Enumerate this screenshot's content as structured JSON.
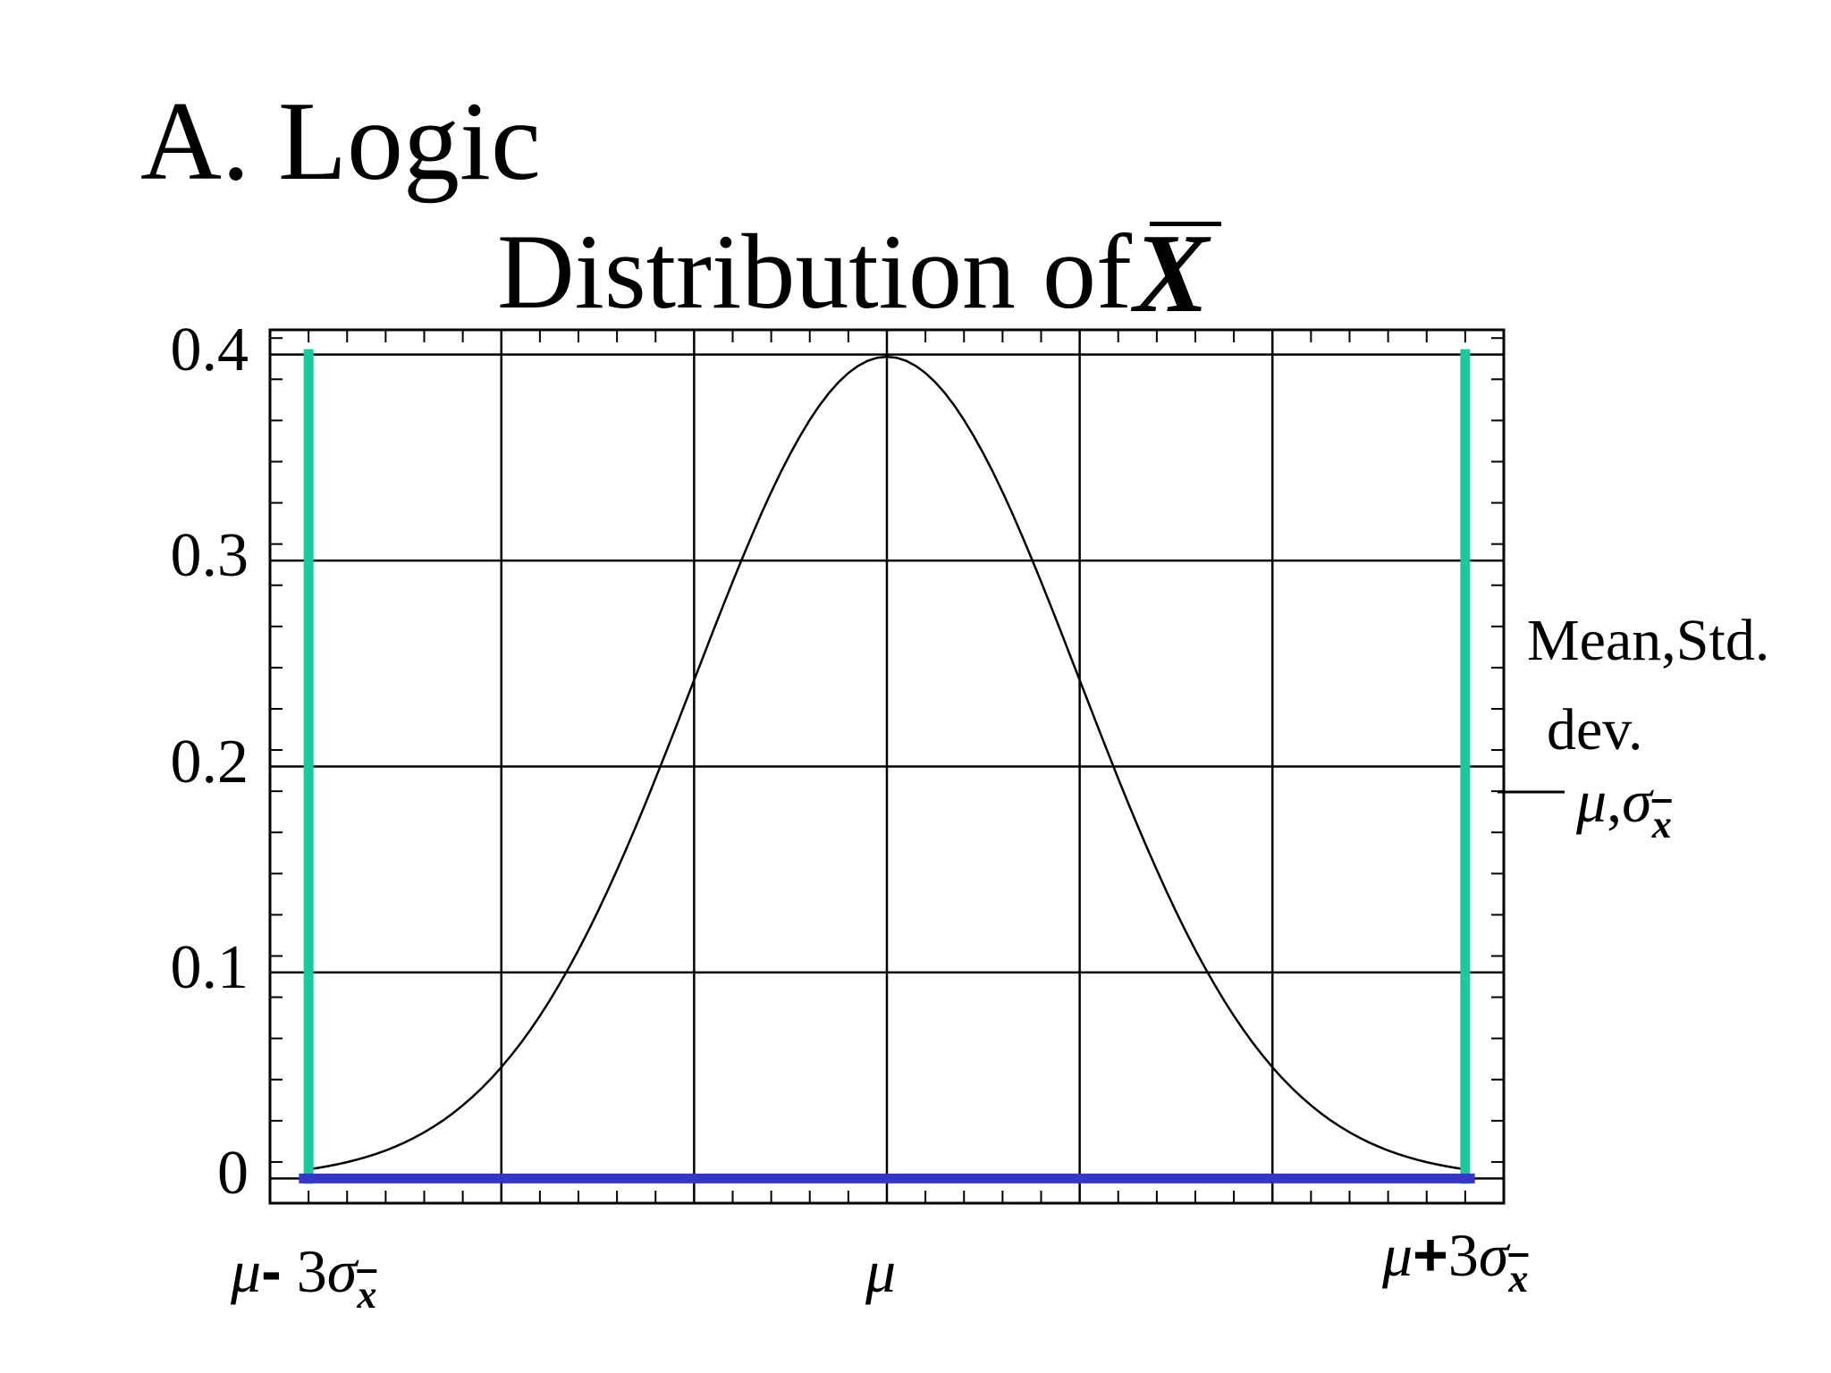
{
  "slide": {
    "title": "A. Logic"
  },
  "chart_data": {
    "type": "line",
    "title": "Distribution of X̄",
    "title_text": "Distribution of",
    "title_symbol": "X",
    "xlabel": "",
    "ylabel": "",
    "xlim": [
      -3.2,
      3.2
    ],
    "ylim": [
      -0.012,
      0.412
    ],
    "grid": true,
    "y_ticks": [
      0,
      0.1,
      0.2,
      0.3,
      0.4
    ],
    "y_tick_labels": [
      "0",
      "0.1",
      "0.2",
      "0.3",
      "0.4"
    ],
    "x_gridlines": [
      -2,
      -1,
      0,
      1,
      2
    ],
    "x_tick_labels": [
      {
        "x": -3,
        "mu": "μ",
        "op": "-",
        "coef": " 3",
        "sigma": "σ",
        "sub": "x"
      },
      {
        "x": 0,
        "mu": "μ",
        "op": "",
        "coef": "",
        "sigma": "",
        "sub": ""
      },
      {
        "x": 3,
        "mu": "μ",
        "op": "+",
        "coef": "3",
        "sigma": "σ",
        "sub": "x"
      }
    ],
    "series": [
      {
        "type": "curve",
        "color": "#000000",
        "x": [
          -3.0,
          -2.5,
          -2.0,
          -1.5,
          -1.0,
          -0.5,
          0.0,
          0.5,
          1.0,
          1.5,
          2.0,
          2.5,
          3.0
        ],
        "y": [
          0.0044,
          0.0175,
          0.054,
          0.1295,
          0.242,
          0.3521,
          0.3989,
          0.3521,
          0.242,
          0.1295,
          0.054,
          0.0175,
          0.0044
        ]
      }
    ],
    "bounds": {
      "color": "#1dc89a",
      "x": [
        -3,
        3
      ],
      "y_top": 0.4
    },
    "baseline": {
      "color": "#3535c6",
      "y": 0,
      "x_range": [
        -3.05,
        3.05
      ]
    },
    "legend": {
      "placement": "right",
      "heading_line1": "Mean,Std.",
      "heading_line2": "dev.",
      "entry_mu": "μ",
      "entry_sep": ",",
      "entry_sigma": "σ",
      "entry_sub": "x"
    }
  }
}
